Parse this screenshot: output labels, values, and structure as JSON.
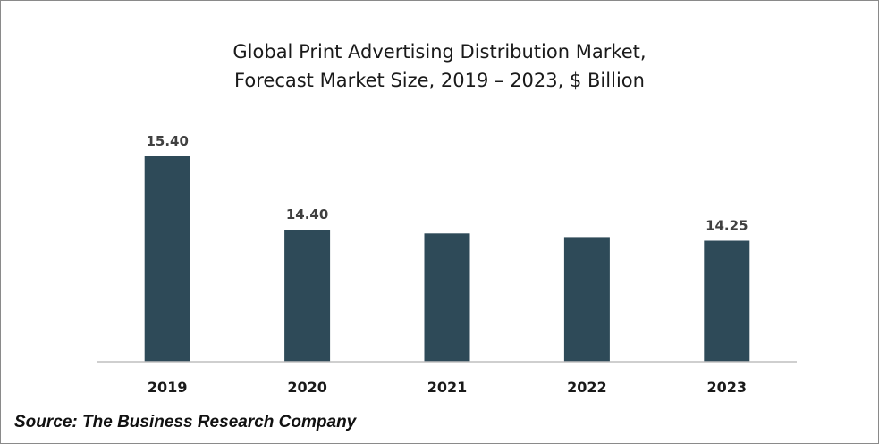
{
  "chart_data": {
    "type": "bar",
    "title_line1": "Global Print Advertising Distribution Market,",
    "title_line2": "Forecast Market Size, 2019 – 2023, $ Billion",
    "xlabel": "",
    "ylabel": "",
    "categories": [
      "2019",
      "2020",
      "2021",
      "2022",
      "2023"
    ],
    "values": [
      15.4,
      14.4,
      14.35,
      14.3,
      14.25
    ],
    "data_labels": [
      "15.40",
      "14.40",
      "",
      "",
      "14.25"
    ],
    "ylim": [
      12.6,
      15.4
    ],
    "grid": false,
    "legend": "none",
    "bar_color": "#2e4a58"
  },
  "footer": {
    "source": "Source: The Business Research Company"
  }
}
